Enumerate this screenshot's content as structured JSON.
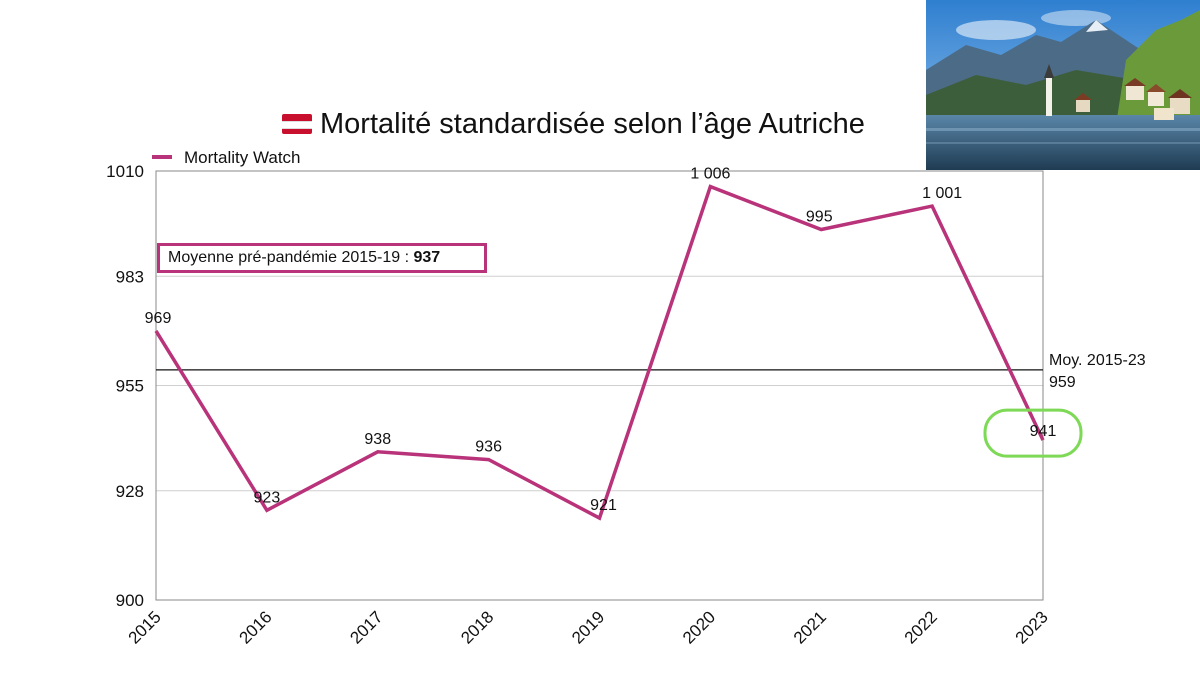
{
  "chart_data": {
    "type": "line",
    "title": "Mortalité standardisée selon l’âge Autriche",
    "title_icon": "austria-flag-icon",
    "x": [
      "2015",
      "2016",
      "2017",
      "2018",
      "2019",
      "2020",
      "2021",
      "2022",
      "2023"
    ],
    "series": [
      {
        "name": "Mortality Watch",
        "color": "#b9337a",
        "values": [
          969,
          923,
          938,
          936,
          921,
          1006,
          995,
          1001,
          941
        ],
        "data_labels": [
          "969",
          "923",
          "938",
          "936",
          "921",
          "1 006",
          "995",
          "1 001",
          "941"
        ]
      }
    ],
    "y_ticks": [
      900,
      928,
      955,
      983,
      1010
    ],
    "y_tick_labels": [
      "900",
      "928",
      "955",
      "983",
      "1010"
    ],
    "ylim": [
      900,
      1010
    ],
    "grid": true,
    "legend": "top-left",
    "reference_line": {
      "value": 959,
      "label_line1": "Moy. 2015-23",
      "label_line2": "959",
      "color": "#111111"
    },
    "annotation": {
      "text": "Moyenne pré-pandémie 2015-19 : ",
      "value": "937",
      "border_color": "#b9337a"
    },
    "highlight": {
      "target_year": "2023",
      "color": "#7ed957"
    }
  }
}
